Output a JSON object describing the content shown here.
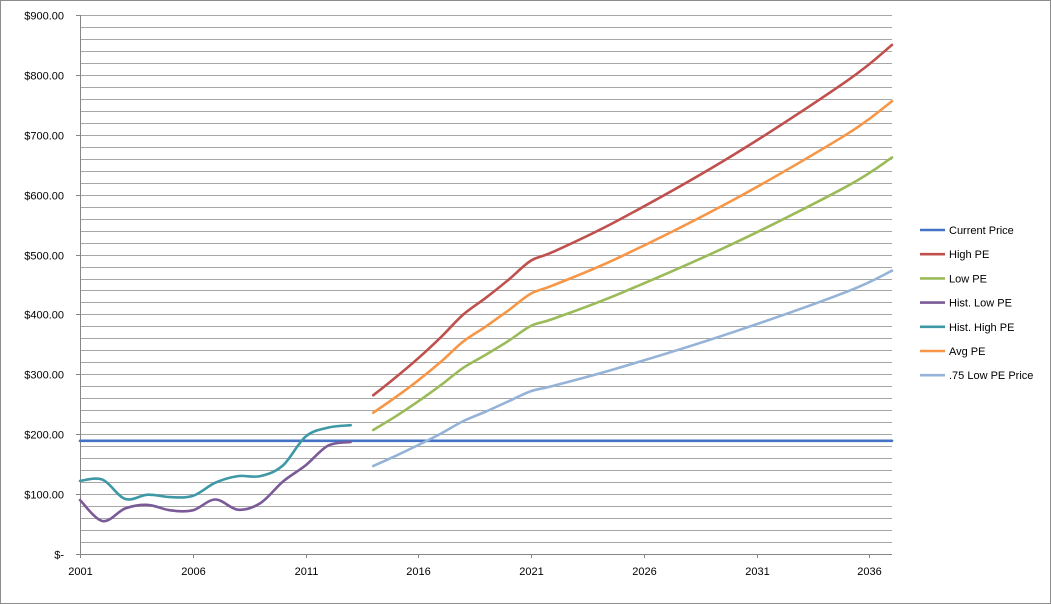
{
  "chart_data": {
    "type": "line",
    "title": "",
    "xlabel": "",
    "ylabel": "",
    "xlim": [
      2001,
      2037
    ],
    "ylim": [
      0,
      900
    ],
    "grid": "horizontal minor gridlines",
    "legend_position": "right",
    "y_ticks": [
      0,
      100,
      200,
      300,
      400,
      500,
      600,
      700,
      800,
      900
    ],
    "y_tick_labels": [
      "$-",
      "$100.00",
      "$200.00",
      "$300.00",
      "$400.00",
      "$500.00",
      "$600.00",
      "$700.00",
      "$800.00",
      "$900.00"
    ],
    "x_ticks": [
      2001,
      2006,
      2011,
      2016,
      2021,
      2026,
      2031,
      2036
    ],
    "x_tick_labels": [
      "2001",
      "2006",
      "2011",
      "2016",
      "2021",
      "2026",
      "2031",
      "2036"
    ],
    "series": [
      {
        "name": "Current Price",
        "color": "#4472c4",
        "points": [
          [
            2001,
            189
          ],
          [
            2037,
            189
          ]
        ]
      },
      {
        "name": "High PE",
        "color": "#c0504d",
        "points": [
          [
            2014,
            265
          ],
          [
            2015,
            295
          ],
          [
            2016,
            327
          ],
          [
            2017,
            362
          ],
          [
            2018,
            400
          ],
          [
            2019,
            428
          ],
          [
            2020,
            458
          ],
          [
            2021,
            490
          ],
          [
            2022,
            505
          ],
          [
            2025,
            560
          ],
          [
            2030,
            667
          ],
          [
            2035,
            790
          ],
          [
            2037,
            850
          ]
        ]
      },
      {
        "name": "Low PE",
        "color": "#9bbb59",
        "points": [
          [
            2014,
            207
          ],
          [
            2015,
            230
          ],
          [
            2016,
            255
          ],
          [
            2017,
            282
          ],
          [
            2018,
            311
          ],
          [
            2019,
            333
          ],
          [
            2020,
            356
          ],
          [
            2021,
            381
          ],
          [
            2022,
            393
          ],
          [
            2025,
            436
          ],
          [
            2030,
            519
          ],
          [
            2035,
            614
          ],
          [
            2037,
            662
          ]
        ]
      },
      {
        "name": "Hist. Low PE",
        "color": "#7b5a98",
        "points": [
          [
            2001,
            90
          ],
          [
            2002,
            55
          ],
          [
            2003,
            76
          ],
          [
            2004,
            82
          ],
          [
            2005,
            73
          ],
          [
            2006,
            73
          ],
          [
            2007,
            91
          ],
          [
            2008,
            74
          ],
          [
            2009,
            85
          ],
          [
            2010,
            121
          ],
          [
            2011,
            148
          ],
          [
            2012,
            181
          ],
          [
            2013,
            187
          ]
        ]
      },
      {
        "name": "Hist. High PE",
        "color": "#3e98a6",
        "points": [
          [
            2001,
            122
          ],
          [
            2002,
            124
          ],
          [
            2003,
            92
          ],
          [
            2004,
            99
          ],
          [
            2005,
            95
          ],
          [
            2006,
            97
          ],
          [
            2007,
            119
          ],
          [
            2008,
            130
          ],
          [
            2009,
            130
          ],
          [
            2010,
            148
          ],
          [
            2011,
            196
          ],
          [
            2012,
            211
          ],
          [
            2013,
            215
          ]
        ]
      },
      {
        "name": "Avg PE",
        "color": "#f79646",
        "points": [
          [
            2014,
            236
          ],
          [
            2015,
            262
          ],
          [
            2016,
            290
          ],
          [
            2017,
            321
          ],
          [
            2018,
            355
          ],
          [
            2019,
            380
          ],
          [
            2020,
            407
          ],
          [
            2021,
            435
          ],
          [
            2022,
            449
          ],
          [
            2025,
            497
          ],
          [
            2030,
            592
          ],
          [
            2035,
            701
          ],
          [
            2037,
            756
          ]
        ]
      },
      {
        "name": ".75 Low PE Price",
        "color": "#95b3d7",
        "points": [
          [
            2014,
            147
          ],
          [
            2015,
            164
          ],
          [
            2016,
            182
          ],
          [
            2017,
            201
          ],
          [
            2018,
            222
          ],
          [
            2019,
            238
          ],
          [
            2020,
            255
          ],
          [
            2021,
            272
          ],
          [
            2022,
            281
          ],
          [
            2025,
            312
          ],
          [
            2030,
            371
          ],
          [
            2035,
            438
          ],
          [
            2037,
            473
          ]
        ]
      }
    ]
  }
}
